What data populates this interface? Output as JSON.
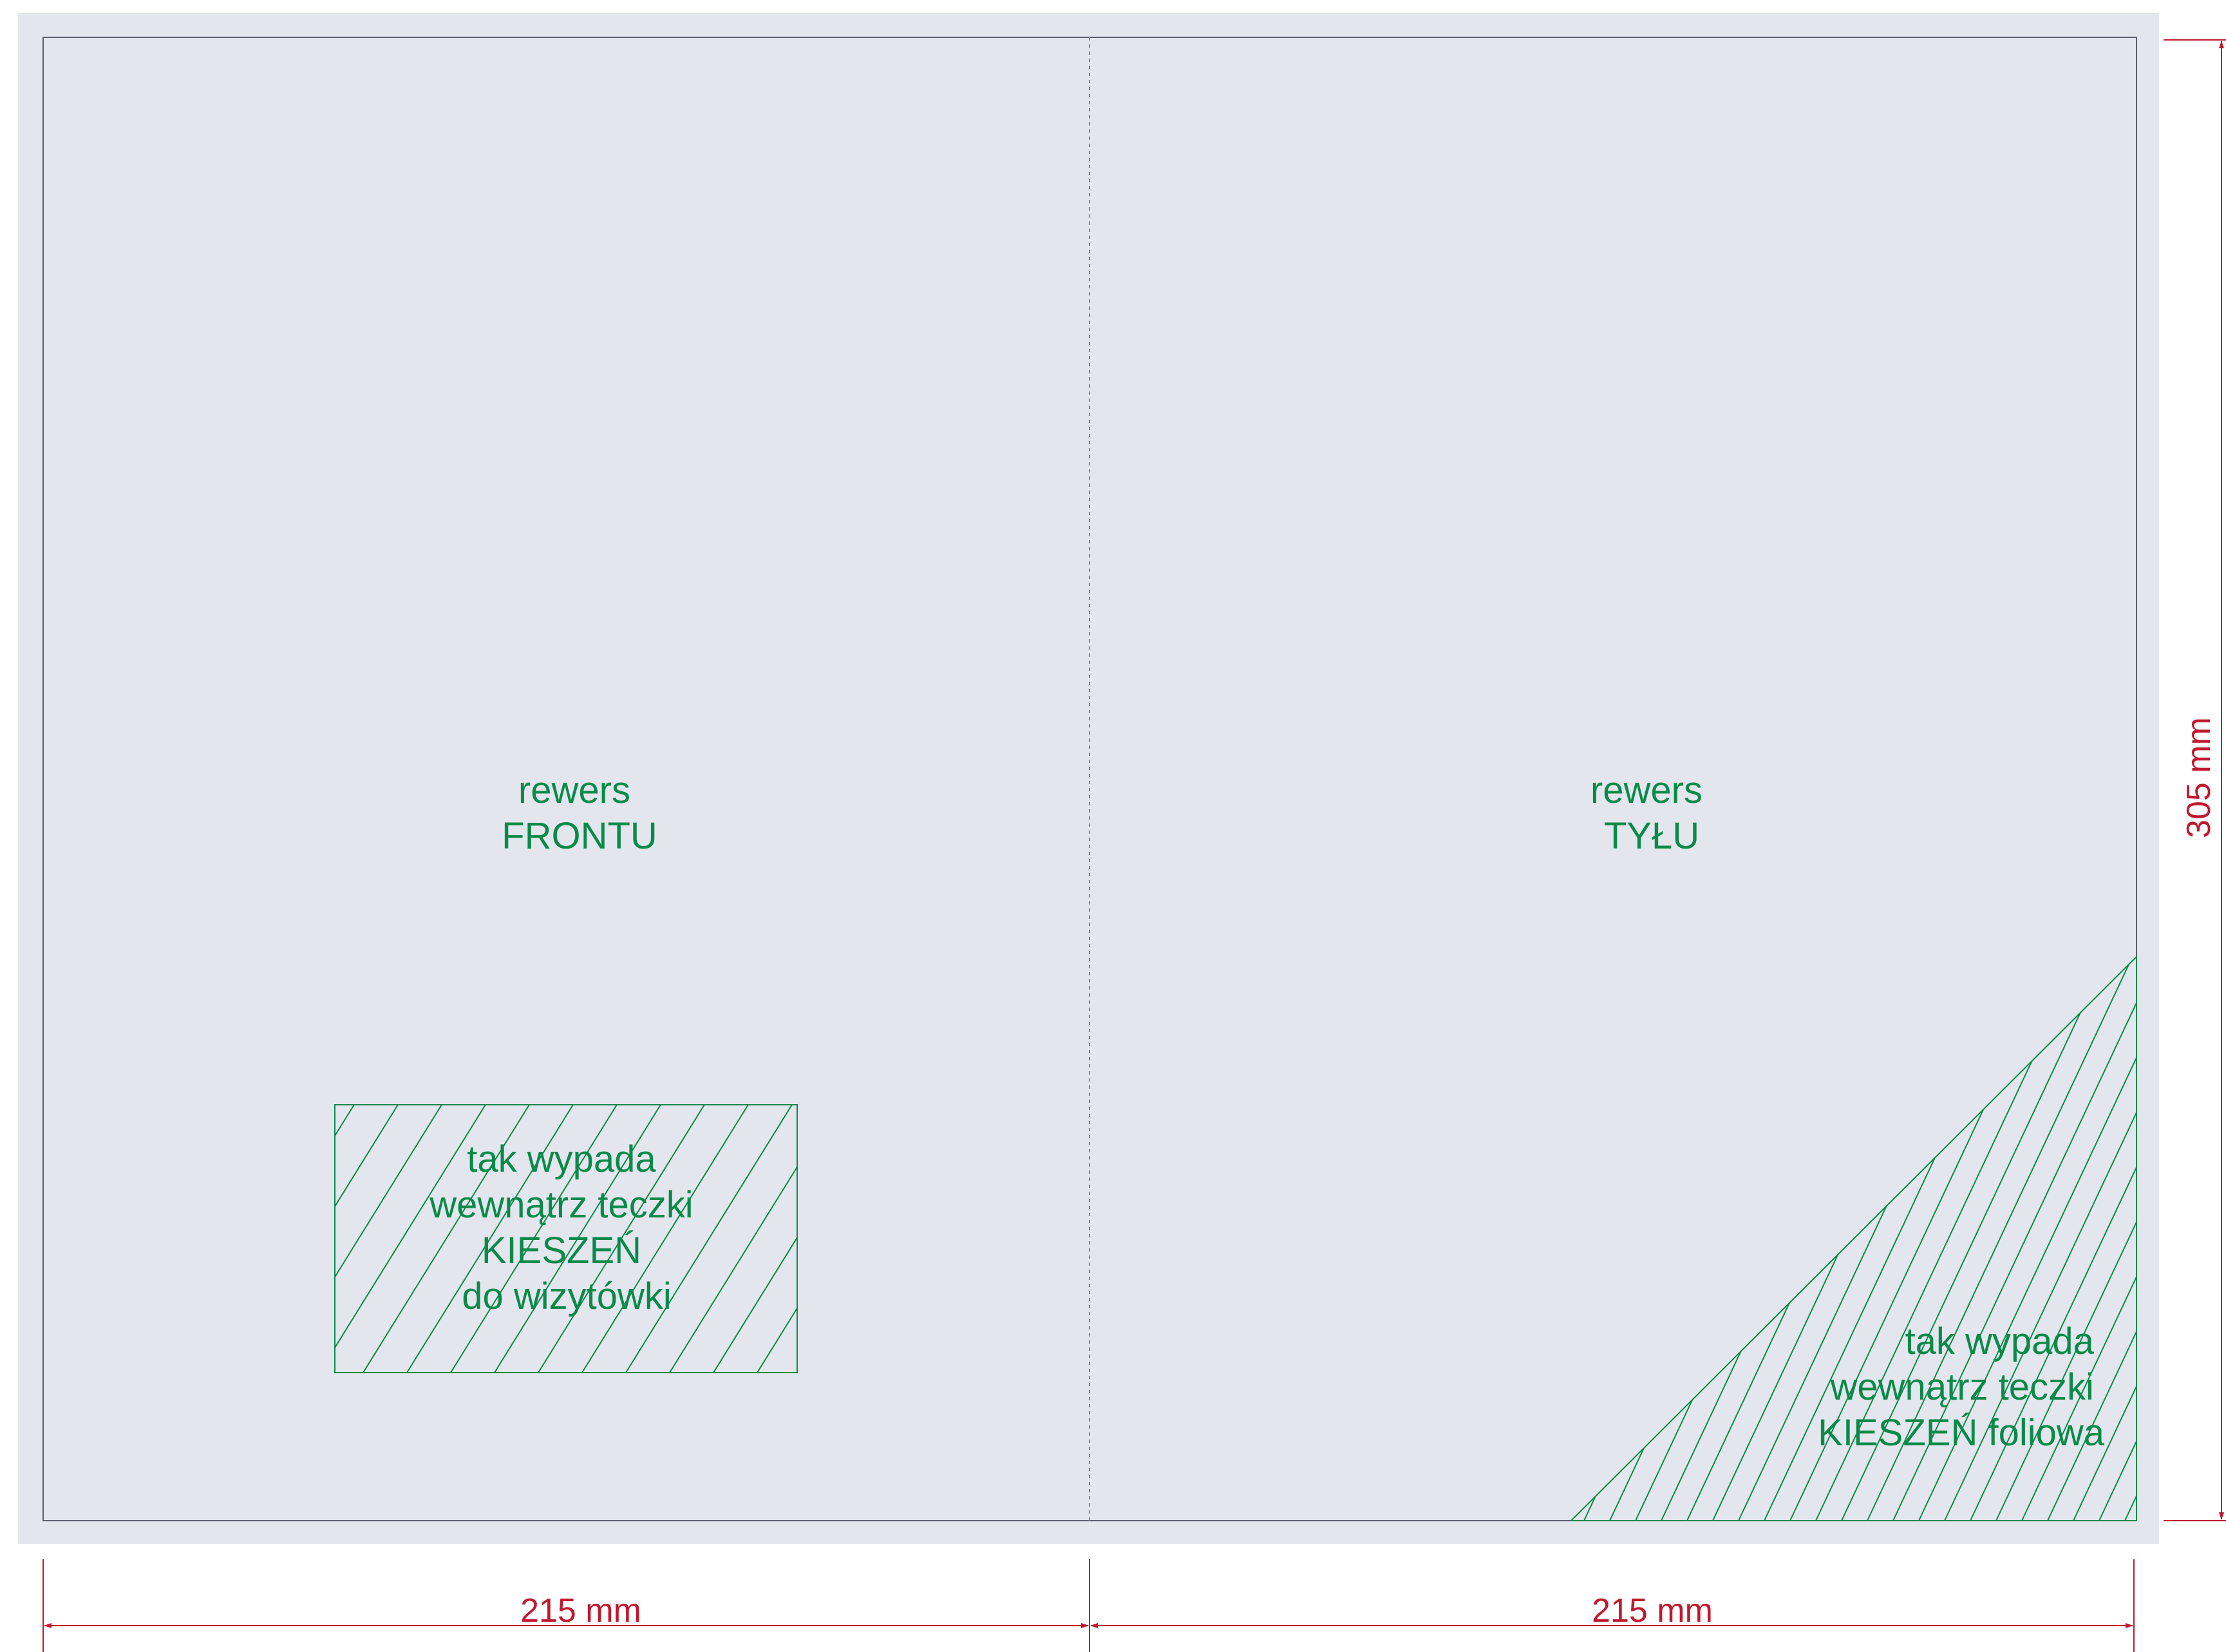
{
  "colors": {
    "page_background": "#ffffff",
    "bleed_background": "#e4e6ee",
    "trim_line": "#5a5f6e",
    "fold_line": "#7a7f90",
    "accent_green": "#0a8a4a",
    "dimension_red": "#c0182e"
  },
  "panels": {
    "left": {
      "line1": "rewers",
      "line2": "FRONTU"
    },
    "right": {
      "line1": "rewers",
      "line2": "TYŁU"
    }
  },
  "pockets": {
    "business_card": {
      "lines": [
        "tak wypada",
        "wewnątrz teczki",
        "KIESZEŃ",
        "do wizytówki"
      ]
    },
    "foil": {
      "lines": [
        "tak wypada",
        "wewnątrz teczki",
        "KIESZEŃ foliowa"
      ]
    }
  },
  "dimensions": {
    "left_width": "215 mm",
    "right_width": "215 mm",
    "height": "305 mm"
  }
}
